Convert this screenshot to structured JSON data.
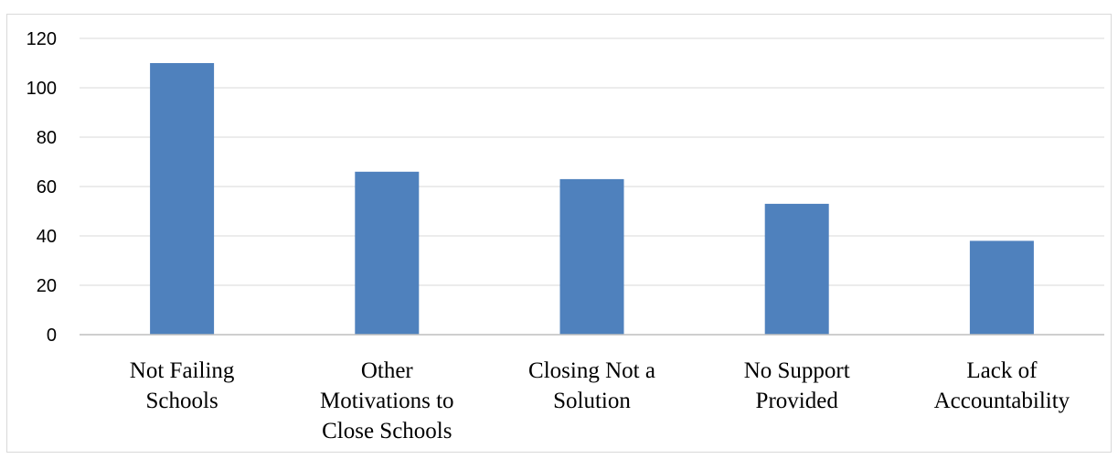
{
  "chart_data": {
    "type": "bar",
    "categories": [
      [
        "Not Failing",
        "Schools"
      ],
      [
        "Other",
        "Motivations to",
        "Close Schools"
      ],
      [
        "Closing Not a",
        "Solution"
      ],
      [
        "No Support",
        "Provided"
      ],
      [
        "Lack of",
        "Accountability"
      ]
    ],
    "values": [
      110,
      66,
      63,
      53,
      38
    ],
    "ylim": [
      0,
      120
    ],
    "yticks": [
      0,
      20,
      40,
      60,
      80,
      100,
      120
    ],
    "grid": true,
    "bar_color": "#4f81bd",
    "title": "",
    "xlabel": "",
    "ylabel": ""
  }
}
